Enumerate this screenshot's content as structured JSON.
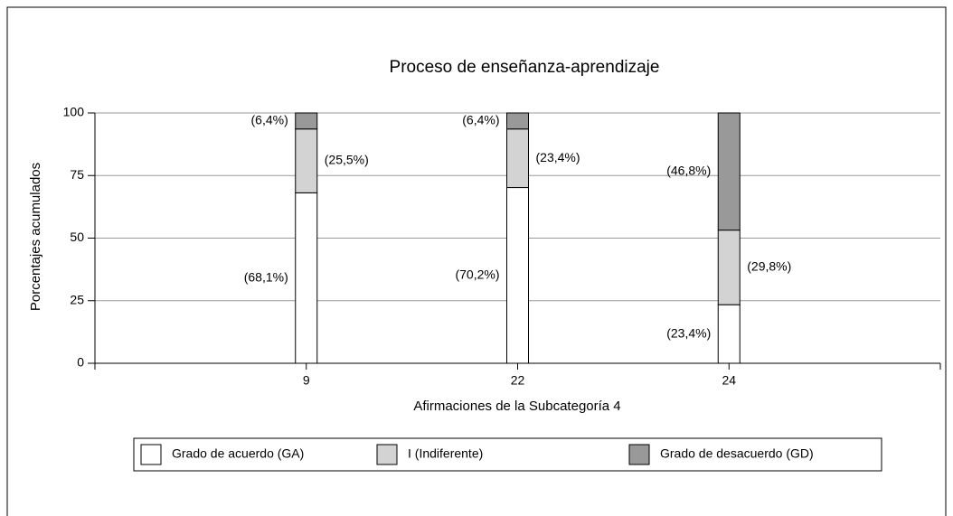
{
  "chart_data": {
    "type": "bar",
    "stacked": true,
    "title": "Proceso de enseñanza-aprendizaje",
    "x_label": "Afirmaciones de la Subcategoría 4",
    "y_label": "Porcentajes acumulados",
    "categories": [
      "9",
      "22",
      "24"
    ],
    "series": [
      {
        "name": "Grado de acuerdo (GA)",
        "color": "#ffffff",
        "values": [
          68.1,
          70.2,
          23.4
        ],
        "value_labels": [
          "(68,1%)",
          "(70,2%)",
          "(23,4%)"
        ]
      },
      {
        "name": "I (Indiferente)",
        "color": "#d3d3d3",
        "values": [
          25.5,
          23.4,
          29.8
        ],
        "value_labels": [
          "(25,5%)",
          "(23,4%)",
          "(29,8%)"
        ]
      },
      {
        "name": "Grado de desacuerdo (GD)",
        "color": "#999999",
        "values": [
          6.4,
          6.4,
          46.8
        ],
        "value_labels": [
          "(6,4%)",
          "(6,4%)",
          "(46,8%)"
        ]
      }
    ],
    "ylim": [
      0,
      100
    ],
    "yticks": [
      0,
      25,
      50,
      75,
      100
    ],
    "grid": true,
    "legend": "bottom"
  }
}
